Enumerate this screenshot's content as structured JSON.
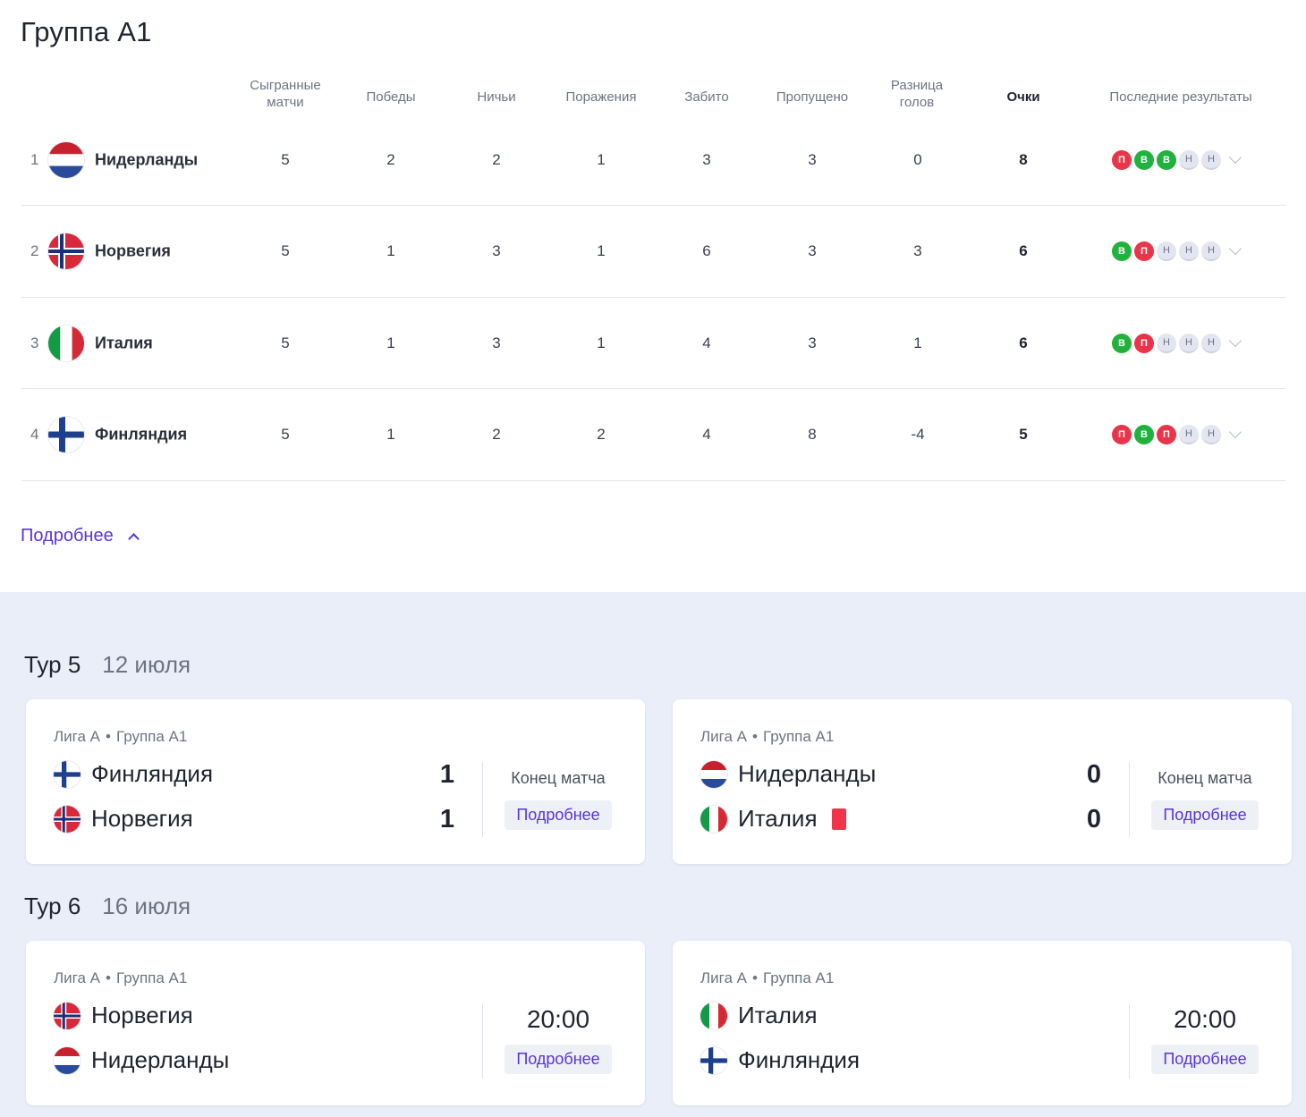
{
  "group_title": "Группа А1",
  "columns": {
    "played": [
      "Сыгранные",
      "матчи"
    ],
    "wins": "Победы",
    "draws": "Ничьи",
    "losses": "Поражения",
    "scored": "Забито",
    "conceded": "Пропущено",
    "diff": [
      "Разница",
      "голов"
    ],
    "points": "Очки",
    "form": "Последние результаты"
  },
  "standings": [
    {
      "rank": "1",
      "team": "Нидерланды",
      "flag": "netherlands-flag",
      "played": "5",
      "wins": "2",
      "draws": "2",
      "losses": "1",
      "scored": "3",
      "conceded": "3",
      "diff": "0",
      "points": "8",
      "form": [
        {
          "r": "L",
          "t": "П"
        },
        {
          "r": "W",
          "t": "В"
        },
        {
          "r": "W",
          "t": "В"
        },
        {
          "r": "D",
          "t": "Н"
        },
        {
          "r": "D",
          "t": "Н"
        }
      ]
    },
    {
      "rank": "2",
      "team": "Норвегия",
      "flag": "norway-flag",
      "played": "5",
      "wins": "1",
      "draws": "3",
      "losses": "1",
      "scored": "6",
      "conceded": "3",
      "diff": "3",
      "points": "6",
      "form": [
        {
          "r": "W",
          "t": "В"
        },
        {
          "r": "L",
          "t": "П"
        },
        {
          "r": "D",
          "t": "Н"
        },
        {
          "r": "D",
          "t": "Н"
        },
        {
          "r": "D",
          "t": "Н"
        }
      ]
    },
    {
      "rank": "3",
      "team": "Италия",
      "flag": "italy-flag",
      "played": "5",
      "wins": "1",
      "draws": "3",
      "losses": "1",
      "scored": "4",
      "conceded": "3",
      "diff": "1",
      "points": "6",
      "form": [
        {
          "r": "W",
          "t": "В"
        },
        {
          "r": "L",
          "t": "П"
        },
        {
          "r": "D",
          "t": "Н"
        },
        {
          "r": "D",
          "t": "Н"
        },
        {
          "r": "D",
          "t": "Н"
        }
      ]
    },
    {
      "rank": "4",
      "team": "Финляндия",
      "flag": "finland-flag",
      "played": "5",
      "wins": "1",
      "draws": "2",
      "losses": "2",
      "scored": "4",
      "conceded": "8",
      "diff": "-4",
      "points": "5",
      "form": [
        {
          "r": "L",
          "t": "П"
        },
        {
          "r": "W",
          "t": "В"
        },
        {
          "r": "L",
          "t": "П"
        },
        {
          "r": "D",
          "t": "Н"
        },
        {
          "r": "D",
          "t": "Н"
        }
      ]
    }
  ],
  "more_label": "Подробнее",
  "colors": {
    "win": "#1fb23c",
    "loss": "#e9344a",
    "draw": "#e3e6f0",
    "accent": "#5a34d6",
    "background_bottom": "#e9eef8"
  },
  "tours": [
    {
      "label": "Тур 5",
      "date": "12 июля",
      "matches": [
        {
          "league": "Лига А",
          "group": "Группа А1",
          "home": "Финляндия",
          "home_flag": "finland-flag",
          "away": "Норвегия",
          "away_flag": "norway-flag",
          "home_score": "1",
          "away_score": "1",
          "status": "Конец матча",
          "button": "Подробнее"
        },
        {
          "league": "Лига А",
          "group": "Группа А1",
          "home": "Нидерланды",
          "home_flag": "netherlands-flag",
          "away": "Италия",
          "away_flag": "italy-flag",
          "away_red_card": true,
          "home_score": "0",
          "away_score": "0",
          "status": "Конец матча",
          "button": "Подробнее"
        }
      ]
    },
    {
      "label": "Тур 6",
      "date": "16 июля",
      "matches": [
        {
          "league": "Лига А",
          "group": "Группа А1",
          "home": "Норвегия",
          "home_flag": "norway-flag",
          "away": "Нидерланды",
          "away_flag": "netherlands-flag",
          "time": "20:00",
          "button": "Подробнее"
        },
        {
          "league": "Лига А",
          "group": "Группа А1",
          "home": "Италия",
          "home_flag": "italy-flag",
          "away": "Финляндия",
          "away_flag": "finland-flag",
          "time": "20:00",
          "button": "Подробнее"
        }
      ]
    }
  ]
}
